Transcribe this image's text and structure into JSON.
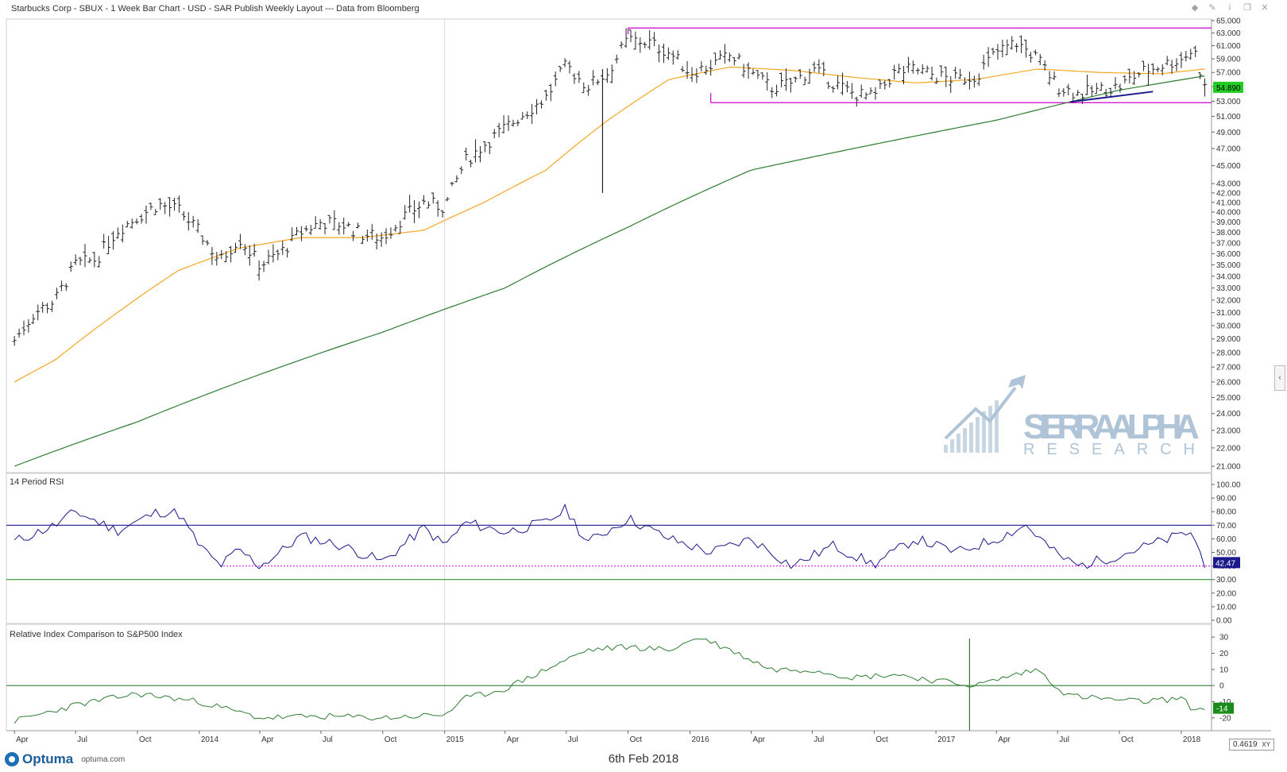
{
  "header": {
    "title": "Starbucks Corp - SBUX - 1 Week Bar Chart - USD - SAR Publish Weekly Layout --- Data from Bloomberg"
  },
  "toolbar": {
    "icons": [
      "diamond-icon",
      "pin-icon",
      "info-icon",
      "restore-icon",
      "close-icon"
    ]
  },
  "colors": {
    "price_bars": "#222222",
    "ma_short": "#f5a623",
    "ma_long": "#2e7d32",
    "channel": "#cc00cc",
    "trendline": "#1a1a8c",
    "rsi_line": "#1a1a8c",
    "rsi_upper": "#1a1a8c",
    "rsi_lower": "#2e9b2e",
    "rsi_dotted": "#cc00cc",
    "relative_line": "#2e7d32",
    "price_badge": "#22cc22",
    "rsi_badge": "#1a1a8c",
    "rel_badge": "#1a8c1a",
    "watermark": "#b0c4d8"
  },
  "chart_data": [
    {
      "type": "bar",
      "name": "price",
      "title": "Starbucks Corp - SBUX - 1 Week Bar Chart - USD",
      "y_scale": "log",
      "ylim": [
        21,
        65
      ],
      "y_ticks": [
        "65.000",
        "63.000",
        "61.000",
        "59.000",
        "57.000",
        "55.000",
        "53.000",
        "51.000",
        "49.000",
        "47.000",
        "45.000",
        "43.000",
        "42.000",
        "41.000",
        "40.000",
        "39.000",
        "38.000",
        "37.000",
        "36.000",
        "35.000",
        "34.000",
        "33.000",
        "32.000",
        "31.000",
        "30.000",
        "29.000",
        "28.000",
        "27.000",
        "26.000",
        "25.000",
        "24.000",
        "23.000",
        "22.000",
        "21.000"
      ],
      "last_value": "54.890",
      "price_path": [
        [
          "2013-04-01",
          28.9
        ],
        [
          "2013-05-01",
          31.0
        ],
        [
          "2013-06-01",
          32.0
        ],
        [
          "2013-07-01",
          35.0
        ],
        [
          "2013-08-01",
          35.5
        ],
        [
          "2013-09-01",
          38.2
        ],
        [
          "2013-10-01",
          39.5
        ],
        [
          "2013-11-01",
          40.8
        ],
        [
          "2013-12-01",
          40.2
        ],
        [
          "2014-01-01",
          38.0
        ],
        [
          "2014-02-01",
          35.3
        ],
        [
          "2014-03-01",
          37.5
        ],
        [
          "2014-04-01",
          35.0
        ],
        [
          "2014-05-01",
          36.0
        ],
        [
          "2014-06-01",
          38.0
        ],
        [
          "2014-07-01",
          39.0
        ],
        [
          "2014-08-01",
          38.8
        ],
        [
          "2014-09-01",
          37.8
        ],
        [
          "2014-10-01",
          37.5
        ],
        [
          "2014-11-01",
          39.5
        ],
        [
          "2014-12-01",
          41.0
        ],
        [
          "2015-01-01",
          40.5
        ],
        [
          "2015-02-01",
          45.5
        ],
        [
          "2015-03-01",
          47.5
        ],
        [
          "2015-04-01",
          49.5
        ],
        [
          "2015-05-01",
          51.5
        ],
        [
          "2015-06-01",
          53.5
        ],
        [
          "2015-07-01",
          58.0
        ],
        [
          "2015-08-01",
          55.0
        ],
        [
          "2015-09-01",
          57.0
        ],
        [
          "2015-10-01",
          62.0
        ],
        [
          "2015-11-01",
          61.5
        ],
        [
          "2015-12-01",
          60.0
        ],
        [
          "2016-01-01",
          57.0
        ],
        [
          "2016-02-01",
          58.0
        ],
        [
          "2016-03-01",
          59.5
        ],
        [
          "2016-04-01",
          57.0
        ],
        [
          "2016-05-01",
          54.8
        ],
        [
          "2016-06-01",
          55.5
        ],
        [
          "2016-07-01",
          57.5
        ],
        [
          "2016-08-01",
          55.5
        ],
        [
          "2016-09-01",
          54.0
        ],
        [
          "2016-10-01",
          53.5
        ],
        [
          "2016-11-01",
          57.0
        ],
        [
          "2016-12-01",
          57.5
        ],
        [
          "2017-01-01",
          56.5
        ],
        [
          "2017-02-01",
          56.0
        ],
        [
          "2017-03-01",
          56.5
        ],
        [
          "2017-04-01",
          60.0
        ],
        [
          "2017-05-01",
          61.5
        ],
        [
          "2017-06-01",
          59.0
        ],
        [
          "2017-07-01",
          55.0
        ],
        [
          "2017-08-01",
          54.0
        ],
        [
          "2017-09-01",
          54.5
        ],
        [
          "2017-10-01",
          55.0
        ],
        [
          "2017-11-01",
          57.0
        ],
        [
          "2017-12-01",
          58.0
        ],
        [
          "2018-01-01",
          59.0
        ],
        [
          "2018-01-20",
          60.5
        ],
        [
          "2018-02-05",
          54.89
        ]
      ],
      "price_outliers": [
        [
          "2015-08-24",
          42.0
        ]
      ],
      "ma_short_path": [
        [
          "2013-04-01",
          26.0
        ],
        [
          "2013-06-01",
          27.5
        ],
        [
          "2013-09-01",
          31.0
        ],
        [
          "2013-12-01",
          34.5
        ],
        [
          "2014-03-01",
          36.5
        ],
        [
          "2014-06-01",
          37.5
        ],
        [
          "2014-09-01",
          37.5
        ],
        [
          "2014-12-01",
          38.2
        ],
        [
          "2015-03-01",
          41.0
        ],
        [
          "2015-06-01",
          44.5
        ],
        [
          "2015-09-01",
          50.5
        ],
        [
          "2015-12-01",
          56.0
        ],
        [
          "2016-03-01",
          57.8
        ],
        [
          "2016-06-01",
          57.3
        ],
        [
          "2016-09-01",
          56.3
        ],
        [
          "2016-12-01",
          55.5
        ],
        [
          "2017-03-01",
          56.0
        ],
        [
          "2017-06-01",
          57.5
        ],
        [
          "2017-09-01",
          57.0
        ],
        [
          "2017-12-01",
          56.8
        ],
        [
          "2018-02-05",
          57.5
        ]
      ],
      "ma_long_path": [
        [
          "2013-04-01",
          21.0
        ],
        [
          "2013-10-01",
          23.5
        ],
        [
          "2014-04-01",
          26.5
        ],
        [
          "2014-10-01",
          29.5
        ],
        [
          "2015-04-01",
          33.0
        ],
        [
          "2015-10-01",
          38.5
        ],
        [
          "2016-04-01",
          44.5
        ],
        [
          "2016-10-01",
          47.5
        ],
        [
          "2017-04-01",
          50.5
        ],
        [
          "2017-10-01",
          54.5
        ],
        [
          "2018-02-05",
          56.5
        ]
      ],
      "channel": {
        "top": 63.8,
        "bottom": 52.8,
        "start": "2015-10-01",
        "end": "2018-02-15"
      },
      "trendline": {
        "start": [
          "2017-07-20",
          52.9
        ],
        "end": [
          "2017-11-20",
          54.3
        ]
      }
    },
    {
      "type": "line",
      "name": "rsi",
      "title": "14 Period RSI",
      "ylim": [
        0,
        100
      ],
      "y_ticks": [
        "100.00",
        "90.00",
        "80.00",
        "70.00",
        "60.00",
        "50.00",
        "40.00",
        "30.00",
        "20.00",
        "10.00",
        "0.00"
      ],
      "last_value": "42.47",
      "upper": 70,
      "lower": 30,
      "dotted": 40,
      "values": [
        [
          "2013-04-01",
          58
        ],
        [
          "2013-06-01",
          70
        ],
        [
          "2013-07-01",
          80
        ],
        [
          "2013-09-01",
          66
        ],
        [
          "2013-11-01",
          80
        ],
        [
          "2013-12-01",
          79
        ],
        [
          "2014-01-01",
          55
        ],
        [
          "2014-02-01",
          40
        ],
        [
          "2014-03-01",
          52
        ],
        [
          "2014-04-01",
          40
        ],
        [
          "2014-05-01",
          50
        ],
        [
          "2014-06-01",
          62
        ],
        [
          "2014-08-01",
          55
        ],
        [
          "2014-10-01",
          43
        ],
        [
          "2014-12-01",
          68
        ],
        [
          "2015-01-01",
          55
        ],
        [
          "2015-02-01",
          72
        ],
        [
          "2015-04-01",
          65
        ],
        [
          "2015-06-01",
          72
        ],
        [
          "2015-07-01",
          82
        ],
        [
          "2015-08-01",
          57
        ],
        [
          "2015-10-01",
          75
        ],
        [
          "2015-12-01",
          60
        ],
        [
          "2016-02-01",
          50
        ],
        [
          "2016-04-01",
          60
        ],
        [
          "2016-06-01",
          40
        ],
        [
          "2016-08-01",
          55
        ],
        [
          "2016-10-01",
          41
        ],
        [
          "2016-12-01",
          60
        ],
        [
          "2017-02-01",
          50
        ],
        [
          "2017-04-01",
          60
        ],
        [
          "2017-05-15",
          70
        ],
        [
          "2017-07-01",
          48
        ],
        [
          "2017-08-01",
          40
        ],
        [
          "2017-10-01",
          48
        ],
        [
          "2017-12-01",
          58
        ],
        [
          "2018-01-15",
          65
        ],
        [
          "2018-02-05",
          42.47
        ]
      ]
    },
    {
      "type": "line",
      "name": "relative",
      "title": "Relative Index Comparison to S&P500 Index",
      "ylim": [
        -25,
        35
      ],
      "y_ticks": [
        "30",
        "20",
        "10",
        "0",
        "-10",
        "-20"
      ],
      "last_value": "-14",
      "zero": 0,
      "values": [
        [
          "2013-04-01",
          -22
        ],
        [
          "2013-07-01",
          -12
        ],
        [
          "2013-10-01",
          -5
        ],
        [
          "2014-01-01",
          -10
        ],
        [
          "2014-04-01",
          -20
        ],
        [
          "2014-07-01",
          -19
        ],
        [
          "2014-10-01",
          -20
        ],
        [
          "2015-01-01",
          -18
        ],
        [
          "2015-02-01",
          -8
        ],
        [
          "2015-04-01",
          -2
        ],
        [
          "2015-06-01",
          10
        ],
        [
          "2015-08-01",
          22
        ],
        [
          "2015-10-01",
          24
        ],
        [
          "2015-12-01",
          22
        ],
        [
          "2016-01-15",
          30
        ],
        [
          "2016-03-01",
          22
        ],
        [
          "2016-05-01",
          10
        ],
        [
          "2016-07-01",
          10
        ],
        [
          "2016-09-01",
          5
        ],
        [
          "2016-11-01",
          7
        ],
        [
          "2017-01-01",
          3
        ],
        [
          "2017-03-01",
          0
        ],
        [
          "2017-05-01",
          7
        ],
        [
          "2017-06-01",
          10
        ],
        [
          "2017-07-15",
          -6
        ],
        [
          "2017-09-01",
          -8
        ],
        [
          "2017-11-01",
          -10
        ],
        [
          "2018-01-01",
          -8
        ],
        [
          "2018-01-20",
          -15
        ],
        [
          "2018-02-05",
          -14
        ]
      ]
    }
  ],
  "x_axis": {
    "start": "2013-03-20",
    "end": "2018-02-15",
    "ticks": [
      [
        "2013-04-01",
        "Apr"
      ],
      [
        "2013-07-01",
        "Jul"
      ],
      [
        "2013-10-01",
        "Oct"
      ],
      [
        "2014-01-01",
        "2014"
      ],
      [
        "2014-04-01",
        "Apr"
      ],
      [
        "2014-07-01",
        "Jul"
      ],
      [
        "2014-10-01",
        "Oct"
      ],
      [
        "2015-01-01",
        "2015"
      ],
      [
        "2015-04-01",
        "Apr"
      ],
      [
        "2015-07-01",
        "Jul"
      ],
      [
        "2015-10-01",
        "Oct"
      ],
      [
        "2016-01-01",
        "2016"
      ],
      [
        "2016-04-01",
        "Apr"
      ],
      [
        "2016-07-01",
        "Jul"
      ],
      [
        "2016-10-01",
        "Oct"
      ],
      [
        "2017-01-01",
        "2017"
      ],
      [
        "2017-04-01",
        "Apr"
      ],
      [
        "2017-07-01",
        "Jul"
      ],
      [
        "2017-10-01",
        "Oct"
      ],
      [
        "2018-01-01",
        "2018"
      ]
    ]
  },
  "watermark": {
    "line1": "SIERRA ALPHA",
    "line2": "RESEARCH"
  },
  "footer": {
    "brand": "Optuma",
    "url": "optuma.com",
    "date": "6th Feb 2018",
    "readout": "0.4619",
    "xy_label": "XY"
  }
}
